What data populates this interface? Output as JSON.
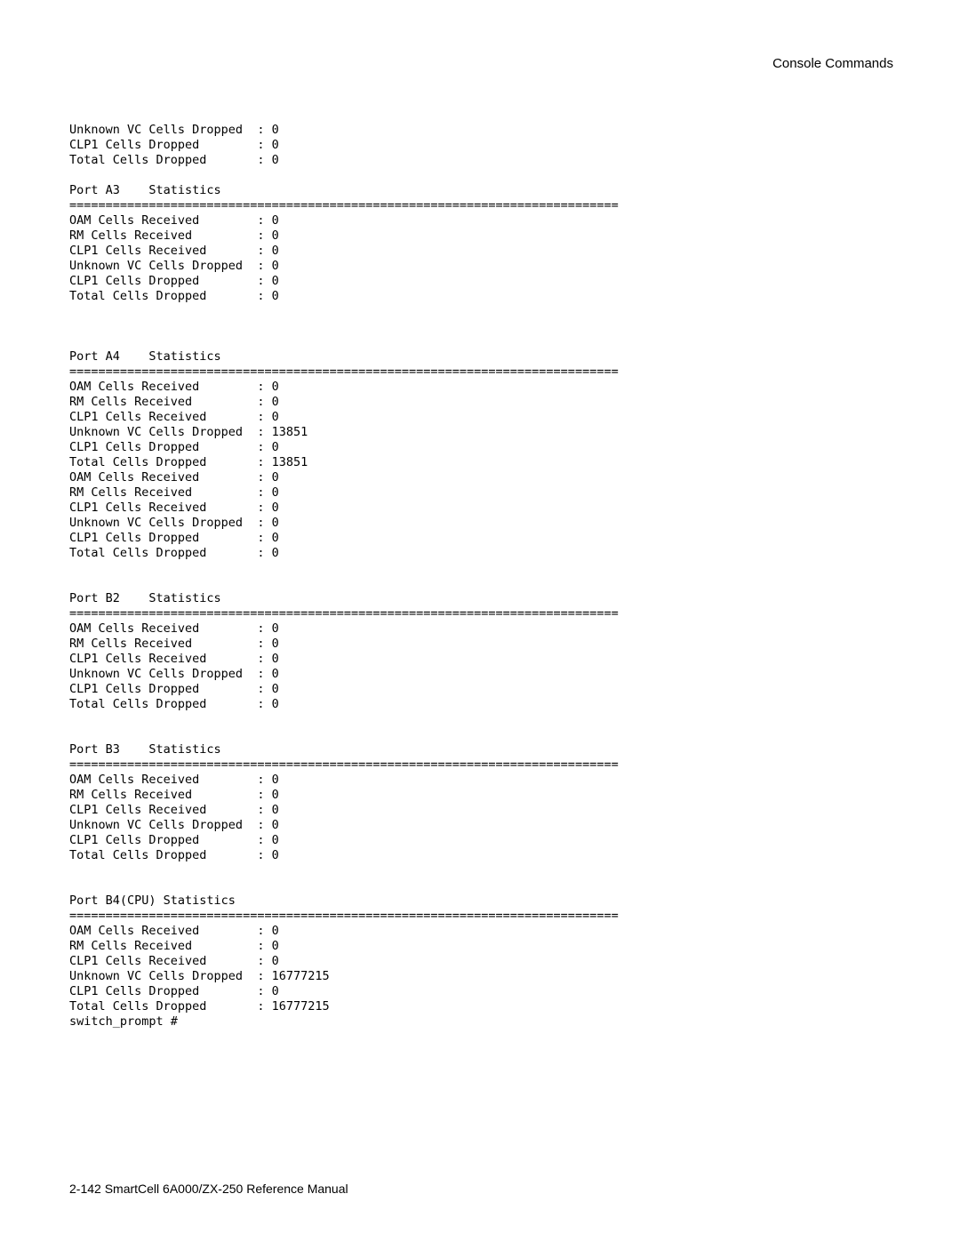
{
  "header": {
    "title": "Console Commands"
  },
  "footer": {
    "text": "2-142   SmartCell 6A000/ZX-250 Reference Manual"
  },
  "console": {
    "labelWidth": 26,
    "sep": "============================================================================",
    "labels": {
      "oam": "OAM Cells Received",
      "rm": "RM Cells Received",
      "clp1r": "CLP1 Cells Received",
      "uvc": "Unknown VC Cells Dropped",
      "clp1d": "CLP1 Cells Dropped",
      "total": "Total Cells Dropped",
      "prompt": "switch_prompt #"
    },
    "topBlock": {
      "uvc": "0",
      "clp1d": "0",
      "total": "0"
    },
    "sections": [
      {
        "title": "Port A3    Statistics",
        "leadingBlank": false,
        "rows": [
          [
            "oam",
            "0"
          ],
          [
            "rm",
            "0"
          ],
          [
            "clp1r",
            "0"
          ],
          [
            "uvc",
            "0"
          ],
          [
            "clp1d",
            "0"
          ],
          [
            "total",
            "0"
          ]
        ],
        "trailingBlank": true
      },
      {
        "title": "Port A4    Statistics",
        "leadingBlank": true,
        "rows": [
          [
            "oam",
            "0"
          ],
          [
            "rm",
            "0"
          ],
          [
            "clp1r",
            "0"
          ],
          [
            "uvc",
            "13851"
          ],
          [
            "clp1d",
            "0"
          ],
          [
            "total",
            "13851"
          ],
          [
            "oam",
            "0"
          ],
          [
            "rm",
            "0"
          ],
          [
            "clp1r",
            "0"
          ],
          [
            "uvc",
            "0"
          ],
          [
            "clp1d",
            "0"
          ],
          [
            "total",
            "0"
          ]
        ],
        "trailingBlank": false
      },
      {
        "title": "Port B2    Statistics",
        "leadingBlank": true,
        "rows": [
          [
            "oam",
            "0"
          ],
          [
            "rm",
            "0"
          ],
          [
            "clp1r",
            "0"
          ],
          [
            "uvc",
            "0"
          ],
          [
            "clp1d",
            "0"
          ],
          [
            "total",
            "0"
          ]
        ],
        "trailingBlank": false
      },
      {
        "title": "Port B3    Statistics",
        "leadingBlank": true,
        "rows": [
          [
            "oam",
            "0"
          ],
          [
            "rm",
            "0"
          ],
          [
            "clp1r",
            "0"
          ],
          [
            "uvc",
            "0"
          ],
          [
            "clp1d",
            "0"
          ],
          [
            "total",
            "0"
          ]
        ],
        "trailingBlank": false
      },
      {
        "title": "Port B4(CPU) Statistics",
        "leadingBlank": true,
        "rows": [
          [
            "oam",
            "0"
          ],
          [
            "rm",
            "0"
          ],
          [
            "clp1r",
            "0"
          ],
          [
            "uvc",
            "16777215"
          ],
          [
            "clp1d",
            "0"
          ],
          [
            "total",
            "16777215"
          ]
        ],
        "trailingBlank": false
      }
    ]
  }
}
